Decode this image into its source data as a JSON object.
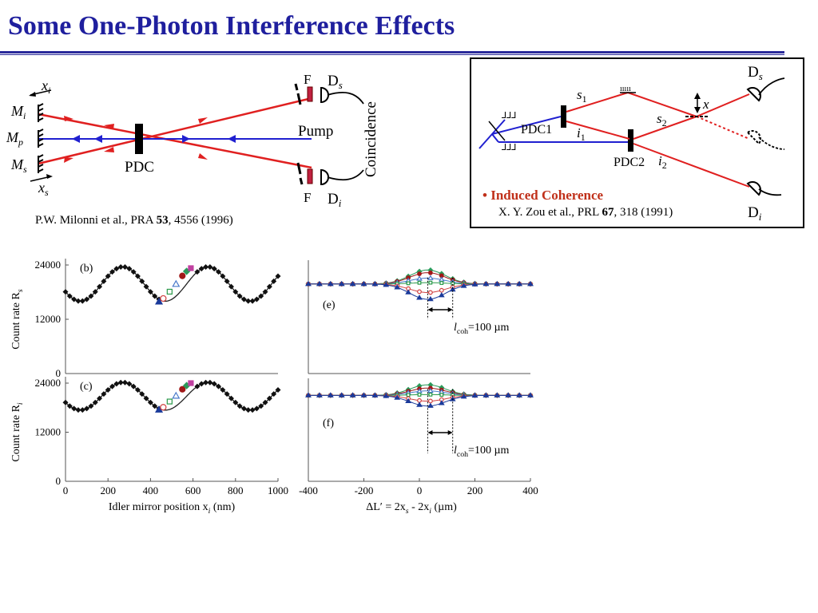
{
  "slide": {
    "title": "Some One-Photon Interference Effects"
  },
  "left_setup": {
    "labels": {
      "xi": "x",
      "xi_sub": "i",
      "mi": "M",
      "mi_sub": "i",
      "mp": "M",
      "mp_sub": "p",
      "ms": "M",
      "ms_sub": "s",
      "xs": "x",
      "xs_sub": "s",
      "pdc": "PDC",
      "pump": "Pump",
      "coincidence": "Coincidence",
      "f_top": "F",
      "f_bot": "F",
      "ds": "D",
      "ds_sub": "s",
      "di": "D",
      "di_sub": "i"
    },
    "reference": {
      "authors": "P.W. Milonni et al., PRA ",
      "volume": "53",
      "rest": ", 4556 (1996)"
    }
  },
  "right_setup": {
    "labels": {
      "pdc1": "PDC1",
      "pdc2": "PDC2",
      "s1": "s",
      "s1_sub": "1",
      "s2": "s",
      "s2_sub": "2",
      "i1": "i",
      "i1_sub": "1",
      "i2": "i",
      "i2_sub": "2",
      "x": "x",
      "ds": "D",
      "ds_sub": "s",
      "di": "D",
      "di_sub": "i"
    },
    "bullet": "• Induced Coherence",
    "reference": {
      "authors": "X. Y. Zou et al., PRL ",
      "volume": "67",
      "rest": ", 318 (1991)"
    }
  },
  "colors": {
    "title": "#1f1f9e",
    "beam_red": "#e02020",
    "beam_blue": "#2020d0",
    "bullet": "#c0301a"
  },
  "chart_data": [
    {
      "id": "b",
      "type": "scatter",
      "panel_label": "(b)",
      "ylabel": "Count rate R",
      "ylabel_sub": "s",
      "ylim": [
        0,
        24000
      ],
      "yticks": [
        0,
        12000,
        24000
      ],
      "xlim": [
        0,
        1000
      ],
      "model": "y = 19800 + 3800*cos(2*pi*(x-270)/400)",
      "x": [
        0,
        20,
        40,
        60,
        80,
        100,
        120,
        140,
        160,
        180,
        200,
        220,
        240,
        260,
        280,
        300,
        320,
        340,
        360,
        380,
        400,
        420,
        440,
        620,
        640,
        660,
        680,
        700,
        720,
        740,
        760,
        780,
        800,
        820,
        840,
        860,
        880,
        900,
        920,
        940,
        960,
        980,
        1000
      ],
      "markers": [
        {
          "shape": "triangle",
          "color": "#1a3a9a",
          "x": 440,
          "y": 15900
        },
        {
          "shape": "open-circle",
          "color": "#d04040",
          "x": 460,
          "y": 16600
        },
        {
          "shape": "open-square",
          "color": "#2a9a4a",
          "x": 490,
          "y": 18100
        },
        {
          "shape": "open-triangle",
          "color": "#4a7aca",
          "x": 520,
          "y": 19800
        },
        {
          "shape": "circle",
          "color": "#a01818",
          "x": 550,
          "y": 21600
        },
        {
          "shape": "diamond",
          "color": "#2a9a5a",
          "x": 570,
          "y": 22600
        },
        {
          "shape": "square",
          "color": "#c040a0",
          "x": 590,
          "y": 23300
        }
      ]
    },
    {
      "id": "c",
      "type": "scatter",
      "panel_label": "(c)",
      "ylabel": "Count rate R",
      "ylabel_sub": "i",
      "ylim": [
        0,
        24000
      ],
      "yticks": [
        0,
        12000,
        24000
      ],
      "xlim": [
        0,
        1000
      ],
      "xticks": [
        0,
        200,
        400,
        600,
        800,
        1000
      ],
      "xlabel": "Idler mirror position x",
      "xlabel_sub": "i",
      "xlabel_unit": " (nm)",
      "model": "y = 20800 + 3400*cos(2*pi*(x-270)/400)",
      "x": [
        0,
        20,
        40,
        60,
        80,
        100,
        120,
        140,
        160,
        180,
        200,
        220,
        240,
        260,
        280,
        300,
        320,
        340,
        360,
        380,
        400,
        420,
        440,
        620,
        640,
        660,
        680,
        700,
        720,
        740,
        760,
        780,
        800,
        820,
        840,
        860,
        880,
        900,
        920,
        940,
        960,
        980,
        1000
      ],
      "markers": [
        {
          "shape": "triangle",
          "color": "#1a3a9a",
          "x": 440,
          "y": 17500
        },
        {
          "shape": "open-circle",
          "color": "#d04040",
          "x": 460,
          "y": 18100
        },
        {
          "shape": "open-square",
          "color": "#2a9a4a",
          "x": 490,
          "y": 19500
        },
        {
          "shape": "open-triangle",
          "color": "#4a7aca",
          "x": 520,
          "y": 20900
        },
        {
          "shape": "circle",
          "color": "#a01818",
          "x": 550,
          "y": 22500
        },
        {
          "shape": "diamond",
          "color": "#2a9a5a",
          "x": 570,
          "y": 23400
        },
        {
          "shape": "square",
          "color": "#c040a0",
          "x": 590,
          "y": 24000
        }
      ]
    },
    {
      "id": "e",
      "type": "line",
      "panel_label": "(e)",
      "ylim": [
        0,
        24000
      ],
      "xlim": [
        -400,
        400
      ],
      "baseline": 19800,
      "x": [
        -400,
        -360,
        -320,
        -280,
        -240,
        -200,
        -160,
        -120,
        -80,
        -40,
        0,
        40,
        80,
        120,
        160,
        200,
        240,
        280,
        320,
        360,
        400
      ],
      "series": [
        {
          "amplitude": 3100,
          "color": "#2a9a5a",
          "shape": "diamond"
        },
        {
          "amplitude": 2500,
          "color": "#a01818",
          "shape": "circle"
        },
        {
          "amplitude": 1300,
          "color": "#4a7aca",
          "shape": "open-triangle"
        },
        {
          "amplitude": 300,
          "color": "#2a9a4a",
          "shape": "open-square"
        },
        {
          "amplitude": -1900,
          "color": "#d04040",
          "shape": "open-circle"
        },
        {
          "amplitude": -3400,
          "color": "#1a3a9a",
          "shape": "triangle"
        }
      ],
      "coherence_label": "l",
      "coherence_sub": "coh",
      "coherence_value": "=100 µm"
    },
    {
      "id": "f",
      "type": "line",
      "panel_label": "(f)",
      "ylim": [
        0,
        24000
      ],
      "xlim": [
        -400,
        400
      ],
      "xticks": [
        -400,
        -200,
        0,
        200,
        400
      ],
      "xlabel_parts": [
        "ΔL′ = 2x",
        "s",
        " - 2x",
        "i",
        "  (µm)"
      ],
      "baseline": 21000,
      "x": [
        -400,
        -360,
        -320,
        -280,
        -240,
        -200,
        -160,
        -120,
        -80,
        -40,
        0,
        40,
        80,
        120,
        160,
        200,
        240,
        280,
        320,
        360,
        400
      ],
      "series": [
        {
          "amplitude": 2600,
          "color": "#2a9a5a",
          "shape": "diamond"
        },
        {
          "amplitude": 1800,
          "color": "#a01818",
          "shape": "circle"
        },
        {
          "amplitude": 1100,
          "color": "#4a7aca",
          "shape": "open-triangle"
        },
        {
          "amplitude": 200,
          "color": "#2a9a4a",
          "shape": "open-square"
        },
        {
          "amplitude": -1400,
          "color": "#d04040",
          "shape": "open-circle"
        },
        {
          "amplitude": -2600,
          "color": "#1a3a9a",
          "shape": "triangle"
        }
      ],
      "coherence_label": "l",
      "coherence_sub": "coh",
      "coherence_value": "=100 µm"
    }
  ]
}
